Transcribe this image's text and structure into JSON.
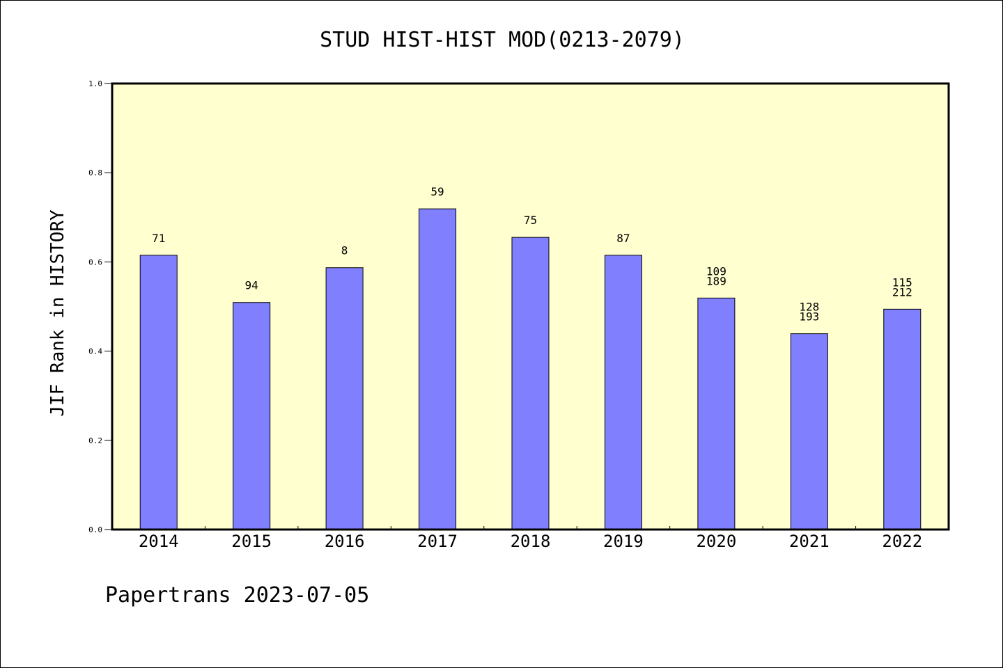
{
  "chart_data": {
    "type": "bar",
    "title": "STUD HIST-HIST MOD(0213-2079)",
    "xlabel": "",
    "ylabel": "JIF Rank in HISTORY",
    "categories": [
      "2014",
      "2015",
      "2016",
      "2017",
      "2018",
      "2019",
      "2020",
      "2021",
      "2022"
    ],
    "values": [
      0.615,
      0.509,
      0.587,
      0.719,
      0.655,
      0.615,
      0.519,
      0.439,
      0.494
    ],
    "rank_labels": [
      [
        "71"
      ],
      [
        "94"
      ],
      [
        "8"
      ],
      [
        "59"
      ],
      [
        "75"
      ],
      [
        "87"
      ],
      [
        "109",
        "189"
      ],
      [
        "128",
        "193"
      ],
      [
        "115",
        "212"
      ]
    ],
    "ylim": [
      0,
      1.0
    ],
    "yticks": [
      "0.0",
      "0.2",
      "0.4",
      "0.6",
      "0.8",
      "1.0"
    ],
    "grid": false,
    "colors": {
      "bar": "#8080ff",
      "plot_background": "#ffffd0",
      "axis": "#000000"
    }
  },
  "footer": {
    "text": "Papertrans 2023-07-05"
  }
}
